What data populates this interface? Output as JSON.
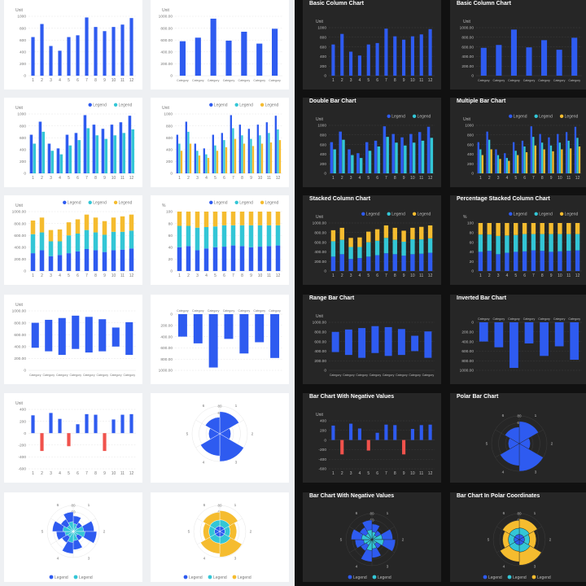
{
  "theme": {
    "light_bg": "#ffffff",
    "dark_bg": "#262626",
    "blue": "#2e5bf0",
    "cyan": "#33c6d6",
    "yellow": "#f5bc2f",
    "red": "#f0524c",
    "light_text": "#777777",
    "dark_text": "#bbbbbb",
    "light_grid": "#e6e6e6",
    "dark_grid": "#3d3d3d"
  },
  "chart_data": [
    {
      "id": "basic-column",
      "type": "bar",
      "title": "Basic Column Chart",
      "ylabel": "Unit",
      "ylim": [
        0,
        1000
      ],
      "yticks": [
        0,
        200,
        400,
        600,
        800,
        1000
      ],
      "yticks_fmt": [
        "0",
        "200",
        "400",
        "600",
        "800",
        "1000"
      ],
      "categories": [
        "1",
        "2",
        "3",
        "4",
        "5",
        "6",
        "7",
        "8",
        "9",
        "10",
        "11",
        "12"
      ],
      "series": [
        {
          "values": [
            650,
            870,
            500,
            420,
            650,
            680,
            980,
            820,
            750,
            820,
            860,
            970
          ]
        }
      ]
    },
    {
      "id": "basic-column-category",
      "type": "bar",
      "title": "Basic Column Chart",
      "ylabel": "Unit",
      "ylim": [
        0,
        1000
      ],
      "yticks": [
        0,
        200,
        400,
        600,
        800,
        1000
      ],
      "yticks_fmt": [
        "0",
        "200.00",
        "400.00",
        "600.00",
        "800.00",
        "1000.00"
      ],
      "categories": [
        "Category",
        "Category",
        "Category",
        "Category",
        "Category",
        "Category",
        "Category"
      ],
      "series": [
        {
          "values": [
            580,
            640,
            960,
            590,
            740,
            540,
            790
          ]
        }
      ]
    },
    {
      "id": "double-bar",
      "type": "bar",
      "title": "Double Bar Chart",
      "ylabel": "Unit",
      "ylim": [
        0,
        1000
      ],
      "yticks": [
        0,
        200,
        400,
        600,
        800,
        1000
      ],
      "yticks_fmt": [
        "0",
        "200",
        "400",
        "600",
        "800",
        "1000"
      ],
      "categories": [
        "1",
        "2",
        "3",
        "4",
        "5",
        "6",
        "7",
        "8",
        "9",
        "10",
        "11",
        "12"
      ],
      "legend": [
        "Legend",
        "Legend"
      ],
      "series": [
        {
          "name": "Legend",
          "values": [
            650,
            870,
            500,
            420,
            650,
            680,
            980,
            820,
            750,
            820,
            860,
            970
          ]
        },
        {
          "name": "Legend",
          "values": [
            500,
            700,
            380,
            320,
            470,
            560,
            760,
            640,
            580,
            640,
            680,
            740
          ]
        }
      ]
    },
    {
      "id": "multiple-bar",
      "type": "bar",
      "title": "Multiple Bar Chart",
      "ylabel": "Unit",
      "ylim": [
        0,
        1000
      ],
      "yticks": [
        0,
        200,
        400,
        600,
        800,
        1000
      ],
      "yticks_fmt": [
        "0",
        "200",
        "400",
        "600",
        "800",
        "1000"
      ],
      "categories": [
        "1",
        "2",
        "3",
        "4",
        "5",
        "6",
        "7",
        "8",
        "9",
        "10",
        "11",
        "12"
      ],
      "legend": [
        "Legend",
        "Legend",
        "Legend"
      ],
      "series": [
        {
          "name": "Legend",
          "values": [
            650,
            870,
            500,
            420,
            650,
            680,
            980,
            820,
            750,
            820,
            860,
            970
          ]
        },
        {
          "name": "Legend",
          "values": [
            500,
            700,
            380,
            320,
            470,
            560,
            760,
            640,
            580,
            640,
            680,
            740
          ]
        },
        {
          "name": "Legend",
          "values": [
            380,
            500,
            300,
            260,
            380,
            440,
            580,
            500,
            460,
            500,
            520,
            560
          ]
        }
      ]
    },
    {
      "id": "stacked-column",
      "type": "bar",
      "stacked": true,
      "title": "Stacked Column Chart",
      "ylabel": "Unit",
      "ylim": [
        0,
        1000
      ],
      "yticks": [
        0,
        200,
        400,
        600,
        800,
        1000
      ],
      "yticks_fmt": [
        "0",
        "200.00",
        "400.00",
        "600.00",
        "800.00",
        "1000.00"
      ],
      "categories": [
        "1",
        "2",
        "3",
        "4",
        "5",
        "6",
        "7",
        "8",
        "9",
        "10",
        "11",
        "12"
      ],
      "legend": [
        "Legend",
        "Legend",
        "Legend"
      ],
      "series": [
        {
          "name": "Legend",
          "values": [
            300,
            350,
            250,
            270,
            300,
            330,
            370,
            350,
            320,
            350,
            360,
            380
          ]
        },
        {
          "name": "Legend",
          "values": [
            320,
            300,
            250,
            230,
            300,
            300,
            320,
            300,
            290,
            310,
            300,
            300
          ]
        },
        {
          "name": "Legend",
          "values": [
            230,
            250,
            190,
            200,
            220,
            240,
            260,
            250,
            230,
            240,
            260,
            270
          ]
        }
      ]
    },
    {
      "id": "percentage-stacked",
      "type": "bar",
      "stacked": true,
      "title": "Percentage Stacked Column Chart",
      "ylabel": "%",
      "ylim": [
        0,
        100
      ],
      "yticks": [
        0,
        20,
        40,
        60,
        80,
        100
      ],
      "yticks_fmt": [
        "0",
        "20",
        "40",
        "60",
        "80",
        "100"
      ],
      "categories": [
        "1",
        "2",
        "3",
        "4",
        "5",
        "6",
        "7",
        "8",
        "9",
        "10",
        "11",
        "12"
      ],
      "legend": [
        "Legend",
        "Legend",
        "Legend"
      ],
      "series": [
        {
          "name": "Legend",
          "values": [
            40,
            42,
            35,
            38,
            40,
            41,
            43,
            42,
            40,
            41,
            42,
            43
          ]
        },
        {
          "name": "Legend",
          "values": [
            36,
            34,
            38,
            36,
            35,
            36,
            34,
            35,
            37,
            36,
            35,
            34
          ]
        },
        {
          "name": "Legend",
          "values": [
            24,
            24,
            27,
            26,
            25,
            23,
            23,
            23,
            23,
            23,
            23,
            23
          ]
        }
      ]
    },
    {
      "id": "range-bar",
      "type": "bar",
      "range": true,
      "title": "Range Bar Chart",
      "ylabel": "Unit",
      "ylim": [
        0,
        1000
      ],
      "yticks": [
        0,
        200,
        400,
        600,
        800,
        1000
      ],
      "yticks_fmt": [
        "0",
        "200.00",
        "400.00",
        "600.00",
        "800.00",
        "1000.00"
      ],
      "categories": [
        "Category",
        "Category",
        "Category",
        "Category",
        "Category",
        "Category",
        "Category",
        "Category"
      ],
      "series": [
        {
          "low": [
            380,
            320,
            260,
            360,
            300,
            320,
            400,
            260
          ],
          "high": [
            800,
            850,
            880,
            920,
            900,
            860,
            720,
            810
          ]
        }
      ]
    },
    {
      "id": "inverted-bar",
      "type": "bar",
      "inverted": true,
      "title": "Inverted Bar Chart",
      "ylabel": "",
      "ylim": [
        0,
        1000
      ],
      "yticks": [
        0,
        200,
        400,
        600,
        800,
        1000
      ],
      "yticks_fmt": [
        "0",
        "200.00",
        "400.00",
        "600.00",
        "800.00",
        "1000.00"
      ],
      "categories": [
        "Category",
        "Category",
        "Category",
        "Category",
        "Category",
        "Category",
        "Category"
      ],
      "series": [
        {
          "values": [
            400,
            520,
            950,
            440,
            700,
            500,
            780
          ]
        }
      ]
    },
    {
      "id": "negative-bar",
      "type": "bar",
      "title": "Bar Chart With Negative Values",
      "ylabel": "Unit",
      "ylim": [
        -600,
        400
      ],
      "yticks": [
        -600,
        -400,
        -200,
        0,
        200,
        400
      ],
      "yticks_fmt": [
        "-600",
        "-400",
        "-200",
        "0",
        "200",
        "400"
      ],
      "categories": [
        "1",
        "2",
        "3",
        "4",
        "5",
        "6",
        "7",
        "8",
        "9",
        "10",
        "11",
        "12"
      ],
      "series": [
        {
          "values": [
            300,
            -300,
            340,
            240,
            -220,
            150,
            320,
            310,
            -300,
            230,
            310,
            320
          ]
        }
      ]
    },
    {
      "id": "polar-bar",
      "type": "bar",
      "polar": true,
      "title": "Polar Bar Chart",
      "rticks": [
        "20",
        "40",
        "60",
        "80"
      ],
      "angle_labels": [
        "1",
        "2",
        "3",
        "4",
        "5",
        "6"
      ],
      "series": [
        {
          "values": [
            80,
            40,
            100,
            80,
            40,
            60
          ]
        }
      ]
    },
    {
      "id": "polar-multi",
      "type": "bar",
      "polar": true,
      "title": "Bar Chart With Negative Values",
      "rticks": [
        "20",
        "40",
        "60",
        "80"
      ],
      "angle_labels": [
        "1",
        "2",
        "3",
        "4",
        "5",
        "6"
      ],
      "legend": [
        "Legend",
        "Legend"
      ],
      "series": [
        {
          "name": "Legend",
          "values": [
            60,
            40,
            80,
            90,
            40,
            70,
            85,
            50,
            65,
            80,
            55,
            75
          ]
        },
        {
          "name": "Legend",
          "values": [
            30,
            20,
            40,
            45,
            20,
            35,
            42,
            25,
            32,
            40,
            28,
            38
          ]
        }
      ]
    },
    {
      "id": "polar-stacked",
      "type": "bar",
      "polar": true,
      "stacked": true,
      "title": "Bar Chart In Polar Coordinates",
      "rticks": [
        "20",
        "40",
        "60",
        "80"
      ],
      "angle_labels": [
        "1",
        "2",
        "3",
        "4",
        "5",
        "6"
      ],
      "legend": [
        "Legend",
        "Legend",
        "Legend"
      ],
      "series": [
        {
          "name": "Legend",
          "values": [
            20,
            20,
            20,
            20,
            20,
            20
          ]
        },
        {
          "name": "Legend",
          "values": [
            25,
            20,
            28,
            25,
            22,
            24
          ]
        },
        {
          "name": "Legend",
          "values": [
            35,
            25,
            50,
            40,
            22,
            30
          ]
        }
      ]
    }
  ]
}
